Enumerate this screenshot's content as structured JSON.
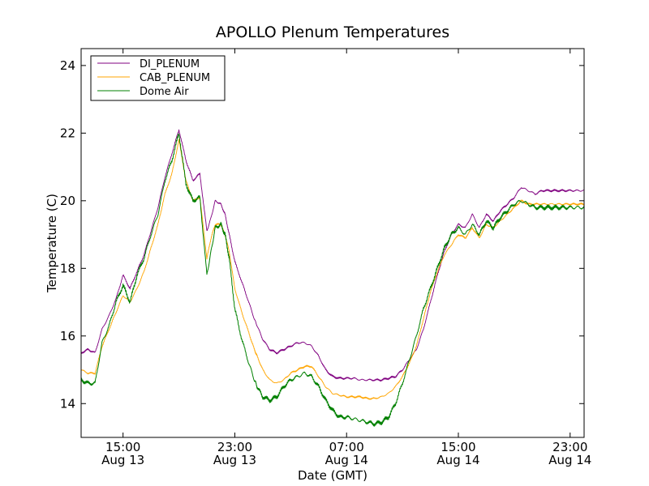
{
  "chart_data": {
    "type": "line",
    "title": "APOLLO Plenum Temperatures",
    "xlabel": "Date (GMT)",
    "ylabel": "Temperature (C)",
    "xlim": [
      12.0,
      48.0
    ],
    "ylim": [
      13.0,
      24.5
    ],
    "grid": false,
    "legend_position": "top-left",
    "y_ticks": [
      {
        "value": 14,
        "label": "14"
      },
      {
        "value": 16,
        "label": "16"
      },
      {
        "value": 18,
        "label": "18"
      },
      {
        "value": 20,
        "label": "20"
      },
      {
        "value": 22,
        "label": "22"
      },
      {
        "value": 24,
        "label": "24"
      }
    ],
    "x_ticks": [
      {
        "value": 15,
        "time": "15:00",
        "date": "Aug 13"
      },
      {
        "value": 23,
        "time": "23:00",
        "date": "Aug 13"
      },
      {
        "value": 31,
        "time": "07:00",
        "date": "Aug 14"
      },
      {
        "value": 39,
        "time": "15:00",
        "date": "Aug 14"
      },
      {
        "value": 47,
        "time": "23:00",
        "date": "Aug 14"
      }
    ],
    "x_unit": "hours since Aug 13 00:00 GMT",
    "series": [
      {
        "name": "DI_PLENUM",
        "color": "#800080",
        "x": [
          12.0,
          12.5,
          13.0,
          13.5,
          14.0,
          14.5,
          15.0,
          15.5,
          16.0,
          16.5,
          17.0,
          17.5,
          18.0,
          18.5,
          19.0,
          19.5,
          20.0,
          20.5,
          21.0,
          21.3,
          21.6,
          22.0,
          22.3,
          22.6,
          23.0,
          23.5,
          24.0,
          24.4,
          24.6,
          25.0,
          25.5,
          26.0,
          26.5,
          27.0,
          27.5,
          28.0,
          28.5,
          29.0,
          29.5,
          30.0,
          30.5,
          31.0,
          31.5,
          32.0,
          32.5,
          33.0,
          33.5,
          34.0,
          34.5,
          35.0,
          35.5,
          36.0,
          36.5,
          37.0,
          37.5,
          38.0,
          38.5,
          39.0,
          39.5,
          40.0,
          40.5,
          41.0,
          41.5,
          42.0,
          42.5,
          43.0,
          43.5,
          44.0,
          44.5,
          45.0,
          45.5,
          46.0,
          46.5,
          47.0,
          47.5,
          48.0
        ],
        "values": [
          15.5,
          15.6,
          15.5,
          16.2,
          16.6,
          17.1,
          17.8,
          17.4,
          17.9,
          18.4,
          19.1,
          19.8,
          20.7,
          21.4,
          22.1,
          21.2,
          20.6,
          20.8,
          19.1,
          19.5,
          20.0,
          19.9,
          19.6,
          19.0,
          18.2,
          17.6,
          17.0,
          16.5,
          16.3,
          15.9,
          15.6,
          15.5,
          15.6,
          15.7,
          15.8,
          15.8,
          15.7,
          15.4,
          15.0,
          14.8,
          14.75,
          14.75,
          14.75,
          14.7,
          14.7,
          14.7,
          14.7,
          14.75,
          14.8,
          15.0,
          15.3,
          15.6,
          16.2,
          17.0,
          17.8,
          18.5,
          19.0,
          19.3,
          19.2,
          19.6,
          19.2,
          19.6,
          19.4,
          19.7,
          19.9,
          20.1,
          20.4,
          20.3,
          20.2,
          20.3,
          20.3,
          20.3,
          20.3,
          20.3,
          20.3,
          20.3
        ]
      },
      {
        "name": "CAB_PLENUM",
        "color": "#ffa500",
        "x": [
          12.0,
          12.5,
          13.0,
          13.5,
          14.0,
          14.5,
          15.0,
          15.5,
          16.0,
          16.5,
          17.0,
          17.5,
          18.0,
          18.5,
          19.0,
          19.5,
          20.0,
          20.5,
          21.0,
          21.3,
          21.6,
          22.0,
          22.3,
          22.6,
          23.0,
          23.5,
          24.0,
          24.4,
          24.6,
          25.0,
          25.5,
          26.0,
          26.5,
          27.0,
          27.5,
          28.0,
          28.5,
          29.0,
          29.5,
          30.0,
          30.5,
          31.0,
          31.5,
          32.0,
          32.5,
          33.0,
          33.5,
          34.0,
          34.5,
          35.0,
          35.5,
          36.0,
          36.5,
          37.0,
          37.5,
          38.0,
          38.5,
          39.0,
          39.5,
          40.0,
          40.5,
          41.0,
          41.5,
          42.0,
          42.5,
          43.0,
          43.5,
          44.0,
          44.5,
          45.0,
          45.5,
          46.0,
          46.5,
          47.0,
          47.5,
          48.0
        ],
        "values": [
          15.0,
          14.9,
          14.9,
          15.7,
          16.2,
          16.7,
          17.2,
          17.0,
          17.4,
          17.9,
          18.6,
          19.3,
          20.2,
          20.8,
          21.8,
          20.6,
          20.0,
          20.1,
          18.3,
          18.9,
          19.3,
          19.3,
          19.0,
          18.5,
          17.4,
          16.7,
          16.1,
          15.6,
          15.4,
          15.0,
          14.7,
          14.6,
          14.7,
          14.9,
          15.0,
          15.1,
          15.1,
          14.8,
          14.5,
          14.3,
          14.25,
          14.2,
          14.2,
          14.2,
          14.15,
          14.15,
          14.2,
          14.3,
          14.5,
          14.8,
          15.2,
          15.7,
          16.5,
          17.3,
          17.9,
          18.4,
          18.7,
          19.0,
          18.9,
          19.2,
          18.9,
          19.3,
          19.2,
          19.4,
          19.6,
          19.8,
          20.0,
          19.9,
          19.9,
          19.9,
          19.9,
          19.9,
          19.9,
          19.9,
          19.9,
          19.9
        ]
      },
      {
        "name": "Dome Air",
        "color": "#008000",
        "x": [
          12.0,
          12.5,
          13.0,
          13.5,
          14.0,
          14.5,
          15.0,
          15.5,
          16.0,
          16.5,
          17.0,
          17.5,
          18.0,
          18.5,
          19.0,
          19.5,
          20.0,
          20.5,
          21.0,
          21.3,
          21.6,
          22.0,
          22.3,
          22.6,
          23.0,
          23.5,
          24.0,
          24.4,
          24.6,
          25.0,
          25.5,
          26.0,
          26.5,
          27.0,
          27.5,
          28.0,
          28.5,
          29.0,
          29.5,
          30.0,
          30.5,
          31.0,
          31.5,
          32.0,
          32.5,
          33.0,
          33.5,
          34.0,
          34.5,
          35.0,
          35.5,
          36.0,
          36.5,
          37.0,
          37.5,
          38.0,
          38.5,
          39.0,
          39.5,
          40.0,
          40.5,
          41.0,
          41.5,
          42.0,
          42.5,
          43.0,
          43.5,
          44.0,
          44.5,
          45.0,
          45.5,
          46.0,
          46.5,
          47.0,
          47.5,
          48.0
        ],
        "values": [
          14.7,
          14.6,
          14.6,
          15.8,
          16.3,
          17.0,
          17.5,
          17.0,
          17.8,
          18.3,
          19.0,
          19.6,
          20.6,
          21.2,
          22.0,
          20.5,
          20.0,
          20.1,
          17.8,
          18.5,
          19.2,
          19.3,
          19.0,
          18.3,
          16.8,
          15.9,
          15.2,
          14.7,
          14.5,
          14.2,
          14.1,
          14.2,
          14.5,
          14.7,
          14.8,
          14.9,
          14.8,
          14.5,
          14.1,
          13.8,
          13.6,
          13.6,
          13.55,
          13.5,
          13.45,
          13.4,
          13.45,
          13.6,
          14.0,
          14.6,
          15.3,
          16.0,
          16.8,
          17.4,
          18.0,
          18.6,
          19.0,
          19.2,
          19.0,
          19.3,
          19.0,
          19.4,
          19.2,
          19.5,
          19.7,
          19.9,
          20.0,
          19.9,
          19.8,
          19.8,
          19.8,
          19.8,
          19.8,
          19.8,
          19.8,
          19.8
        ]
      }
    ]
  }
}
